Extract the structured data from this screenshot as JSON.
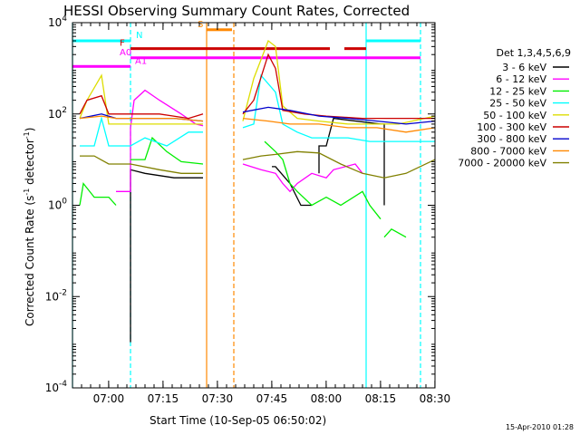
{
  "chart_data": {
    "type": "line",
    "title": "HESSI Observing Summary Count Rates, Corrected",
    "xlabel": "Start Time (10-Sep-05 06:50:02)",
    "ylabel_main": "Corrected Count Rate (s",
    "ylabel_sup1": "-1",
    "ylabel_mid": " detector",
    "ylabel_sup2": "-1",
    "ylabel_end": ")",
    "y_scale": "log",
    "ylim": [
      0.0001,
      10000
    ],
    "xlim_minutes": [
      0,
      100
    ],
    "y_ticks": [
      {
        "v": 10000,
        "base": "10",
        "exp": "4"
      },
      {
        "v": 100,
        "base": "10",
        "exp": "2"
      },
      {
        "v": 1,
        "base": "10",
        "exp": "0"
      },
      {
        "v": 0.01,
        "base": "10",
        "exp": "-2"
      },
      {
        "v": 0.0001,
        "base": "10",
        "exp": "-4"
      }
    ],
    "x_ticks": [
      {
        "m": 9.97,
        "label": "07:00"
      },
      {
        "m": 24.97,
        "label": "07:15"
      },
      {
        "m": 39.97,
        "label": "07:30"
      },
      {
        "m": 54.97,
        "label": "07:45"
      },
      {
        "m": 69.97,
        "label": "08:00"
      },
      {
        "m": 84.97,
        "label": "08:15"
      },
      {
        "m": 99.97,
        "label": "08:30"
      }
    ],
    "legend_title": "Det 1,3,4,5,6,9",
    "series": [
      {
        "name": "3 - 6 keV",
        "color": "#000000",
        "segments": [
          [
            [
              16,
              0.001
            ],
            [
              16,
              6
            ],
            [
              20,
              5
            ],
            [
              28,
              4
            ],
            [
              36,
              4
            ]
          ],
          [
            [
              55,
              7
            ],
            [
              56,
              7
            ],
            [
              60,
              3
            ],
            [
              63,
              1
            ],
            [
              66,
              1
            ]
          ],
          [
            [
              68,
              5
            ],
            [
              68,
              20
            ],
            [
              70,
              20
            ],
            [
              72,
              80
            ],
            [
              85,
              60
            ],
            [
              86,
              60
            ],
            [
              86,
              1
            ]
          ]
        ]
      },
      {
        "name": "6 - 12 keV",
        "color": "#ff00ff",
        "segments": [
          [
            [
              12,
              2
            ],
            [
              14,
              2
            ],
            [
              16,
              2
            ],
            [
              16,
              50
            ],
            [
              17,
              200
            ],
            [
              20,
              330
            ],
            [
              24,
              200
            ],
            [
              30,
              100
            ],
            [
              34,
              60
            ],
            [
              36,
              55
            ]
          ],
          [
            [
              47,
              8
            ],
            [
              52,
              6
            ],
            [
              56,
              5
            ],
            [
              58,
              3
            ],
            [
              60,
              2
            ],
            [
              62,
              3
            ],
            [
              66,
              5
            ],
            [
              70,
              4
            ],
            [
              72,
              6
            ],
            [
              78,
              8
            ],
            [
              80,
              5
            ]
          ]
        ]
      },
      {
        "name": "12 - 25 keV",
        "color": "#00ee00",
        "segments": [
          [
            [
              2,
              1
            ],
            [
              3,
              3
            ],
            [
              6,
              1.5
            ],
            [
              10,
              1.5
            ],
            [
              12,
              1
            ]
          ],
          [
            [
              16,
              10
            ],
            [
              20,
              10
            ],
            [
              22,
              30
            ],
            [
              26,
              15
            ],
            [
              30,
              9
            ],
            [
              36,
              8
            ]
          ],
          [
            [
              53,
              25
            ],
            [
              56,
              15
            ],
            [
              58,
              10
            ],
            [
              60,
              3
            ],
            [
              62,
              2
            ],
            [
              66,
              1
            ],
            [
              70,
              1.5
            ],
            [
              74,
              1
            ],
            [
              80,
              2
            ],
            [
              82,
              1
            ],
            [
              85,
              0.5
            ]
          ],
          [
            [
              86,
              0.2
            ],
            [
              88,
              0.3
            ],
            [
              92,
              0.2
            ]
          ]
        ]
      },
      {
        "name": "25 - 50 keV",
        "color": "#00ffff",
        "segments": [
          [
            [
              2,
              20
            ],
            [
              6,
              20
            ],
            [
              8,
              80
            ],
            [
              10,
              20
            ],
            [
              16,
              20
            ],
            [
              20,
              30
            ],
            [
              26,
              20
            ],
            [
              32,
              40
            ],
            [
              36,
              40
            ]
          ],
          [
            [
              47,
              50
            ],
            [
              50,
              60
            ],
            [
              52,
              700
            ],
            [
              56,
              300
            ],
            [
              58,
              60
            ],
            [
              62,
              40
            ],
            [
              66,
              30
            ],
            [
              70,
              30
            ],
            [
              76,
              30
            ],
            [
              82,
              25
            ],
            [
              86,
              25
            ],
            [
              100,
              25
            ]
          ]
        ]
      },
      {
        "name": "50 - 100 keV",
        "color": "#dddd00",
        "segments": [
          [
            [
              2,
              80
            ],
            [
              4,
              200
            ],
            [
              8,
              700
            ],
            [
              10,
              60
            ],
            [
              14,
              60
            ],
            [
              20,
              60
            ],
            [
              28,
              60
            ],
            [
              36,
              60
            ]
          ],
          [
            [
              47,
              70
            ],
            [
              50,
              600
            ],
            [
              54,
              4000
            ],
            [
              56,
              3000
            ],
            [
              58,
              150
            ],
            [
              62,
              80
            ],
            [
              68,
              70
            ],
            [
              76,
              60
            ],
            [
              84,
              60
            ],
            [
              90,
              60
            ],
            [
              100,
              90
            ]
          ]
        ]
      },
      {
        "name": "100 - 300 keV",
        "color": "#cc0000",
        "segments": [
          [
            [
              2,
              100
            ],
            [
              4,
              200
            ],
            [
              8,
              250
            ],
            [
              10,
              100
            ],
            [
              16,
              100
            ],
            [
              24,
              100
            ],
            [
              32,
              80
            ],
            [
              36,
              100
            ]
          ],
          [
            [
              47,
              100
            ],
            [
              50,
              200
            ],
            [
              54,
              2000
            ],
            [
              56,
              1000
            ],
            [
              58,
              120
            ],
            [
              64,
              100
            ],
            [
              70,
              90
            ],
            [
              80,
              80
            ],
            [
              90,
              80
            ],
            [
              100,
              80
            ]
          ]
        ]
      },
      {
        "name": "300 - 800 keV",
        "color": "#0000cc",
        "segments": [
          [
            [
              2,
              80
            ],
            [
              8,
              100
            ],
            [
              12,
              80
            ],
            [
              20,
              80
            ],
            [
              28,
              80
            ],
            [
              36,
              70
            ]
          ],
          [
            [
              47,
              110
            ],
            [
              54,
              140
            ],
            [
              60,
              120
            ],
            [
              68,
              90
            ],
            [
              76,
              80
            ],
            [
              84,
              70
            ],
            [
              92,
              60
            ],
            [
              100,
              70
            ]
          ]
        ]
      },
      {
        "name": "800 - 7000 keV",
        "color": "#ff8800",
        "segments": [
          [
            [
              2,
              80
            ],
            [
              8,
              90
            ],
            [
              12,
              80
            ],
            [
              20,
              80
            ],
            [
              28,
              80
            ],
            [
              36,
              70
            ]
          ],
          [
            [
              47,
              80
            ],
            [
              54,
              70
            ],
            [
              60,
              60
            ],
            [
              68,
              60
            ],
            [
              76,
              50
            ],
            [
              84,
              50
            ],
            [
              92,
              40
            ],
            [
              100,
              50
            ]
          ]
        ]
      },
      {
        "name": "7000 - 20000 keV",
        "color": "#808000",
        "segments": [
          [
            [
              2,
              12
            ],
            [
              6,
              12
            ],
            [
              10,
              8
            ],
            [
              16,
              8
            ],
            [
              24,
              6
            ],
            [
              30,
              5
            ],
            [
              36,
              5
            ]
          ],
          [
            [
              47,
              10
            ],
            [
              52,
              12
            ],
            [
              56,
              13
            ],
            [
              62,
              15
            ],
            [
              68,
              14
            ],
            [
              74,
              8
            ],
            [
              80,
              5
            ],
            [
              86,
              4
            ],
            [
              92,
              5
            ],
            [
              100,
              10
            ]
          ]
        ]
      }
    ],
    "bars": [
      {
        "label": "N",
        "color": "#00ffff",
        "y": 4000,
        "segments": [
          [
            0,
            16
          ],
          [
            81,
            96
          ]
        ]
      },
      {
        "label": "S",
        "color": "#ff8800",
        "y": 7000,
        "segments": [
          [
            37,
            44
          ]
        ]
      },
      {
        "label": "F",
        "color": "#cc0000",
        "y": 2700,
        "segments": [
          [
            16,
            71
          ],
          [
            75,
            81
          ]
        ]
      },
      {
        "label": "A0",
        "color": "#ff00ff",
        "y": 1700,
        "segments": [
          [
            16,
            96
          ]
        ]
      },
      {
        "label": "A1",
        "color": "#ff00ff",
        "y": 1100,
        "segments": [
          [
            0,
            16
          ]
        ]
      }
    ],
    "vlines": [
      {
        "m": 0,
        "color": "#00ffff",
        "style": "solid"
      },
      {
        "m": 16,
        "color": "#00ffff",
        "style": "dashed"
      },
      {
        "m": 37,
        "color": "#ff8800",
        "style": "solid"
      },
      {
        "m": 44.5,
        "color": "#ff8800",
        "style": "dashed"
      },
      {
        "m": 81,
        "color": "#00ffff",
        "style": "solid"
      },
      {
        "m": 96,
        "color": "#00ffff",
        "style": "dashed"
      }
    ],
    "timestamp": "15-Apr-2010 01:28"
  }
}
